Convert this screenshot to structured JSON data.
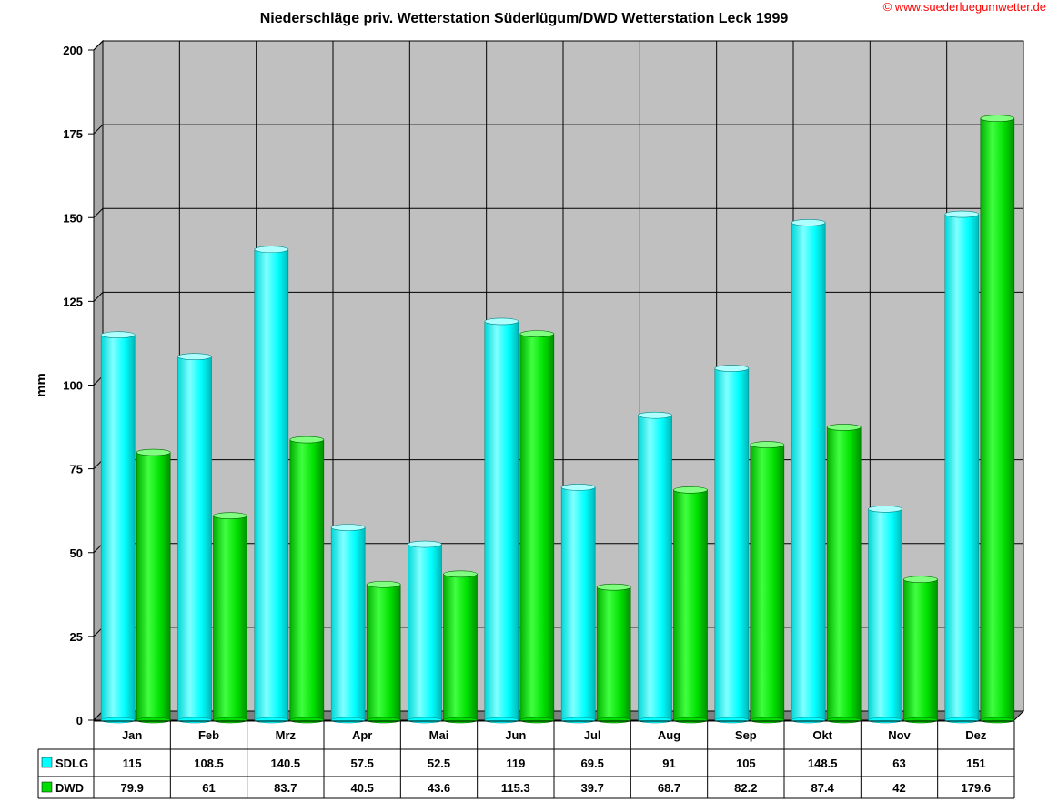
{
  "copyright": "© www.suederluegumwetter.de",
  "chart_data": {
    "type": "bar",
    "title": "Niederschläge priv. Wetterstation Süderlügum/DWD Wetterstation Leck 1999",
    "ylabel": "mm",
    "xlabel": "",
    "ylim": [
      0,
      200
    ],
    "yticks": [
      0,
      25,
      50,
      75,
      100,
      125,
      150,
      175,
      200
    ],
    "categories": [
      "Jan",
      "Feb",
      "Mrz",
      "Apr",
      "Mai",
      "Jun",
      "Jul",
      "Aug",
      "Sep",
      "Okt",
      "Nov",
      "Dez"
    ],
    "series": [
      {
        "name": "SDLG",
        "color": "#00ffff",
        "values": [
          115,
          108.5,
          140.5,
          57.5,
          52.5,
          119,
          69.5,
          91,
          105,
          148.5,
          63,
          151
        ]
      },
      {
        "name": "DWD",
        "color": "#00dd00",
        "values": [
          79.9,
          61,
          83.7,
          40.5,
          43.6,
          115.3,
          39.7,
          68.7,
          82.2,
          87.4,
          42,
          179.6
        ]
      }
    ],
    "value_labels": {
      "SDLG": [
        "115",
        "108.5",
        "140.5",
        "57.5",
        "52.5",
        "119",
        "69.5",
        "91",
        "105",
        "148.5",
        "63",
        "151"
      ],
      "DWD": [
        "79.9",
        "61",
        "83.7",
        "40.5",
        "43.6",
        "115.3",
        "39.7",
        "68.7",
        "82.2",
        "87.4",
        "42",
        "179.6"
      ]
    },
    "grid": true,
    "plot_background": "#c0c0c0",
    "style": "3d-cylinder-bars",
    "legend": "data-table-below"
  }
}
